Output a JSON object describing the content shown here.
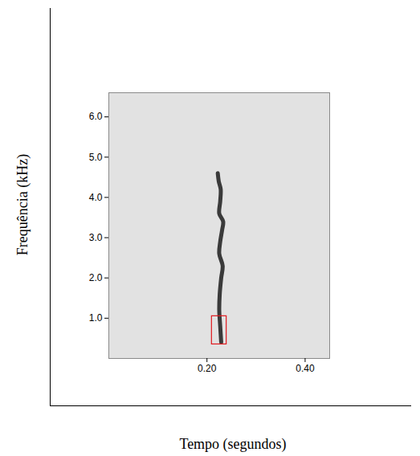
{
  "chart_data": {
    "type": "spectrogram",
    "x_label": "Tempo (segundos)",
    "y_label": "Frequência (kHz)",
    "xlim": [
      0,
      0.45
    ],
    "xticks": [
      0.2,
      0.4
    ],
    "ylim": [
      0,
      6.6
    ],
    "yticks": [
      1,
      2,
      3,
      4,
      5,
      6
    ],
    "series": [
      {
        "color": "#3a3a3a",
        "x": [
          0.229,
          0.227,
          0.225,
          0.226,
          0.229,
          0.232,
          0.225,
          0.227,
          0.231,
          0.233,
          0.225,
          0.227,
          0.228,
          0.224,
          0.222
        ],
        "values": [
          0.4,
          0.8,
          1.2,
          1.6,
          2.0,
          2.3,
          2.6,
          2.9,
          3.2,
          3.4,
          3.6,
          3.9,
          4.2,
          4.4,
          4.6
        ]
      }
    ],
    "highlight": {
      "x": [
        0.21,
        0.24
      ],
      "y": [
        0.35,
        1.05
      ],
      "color": "#e0191e"
    }
  }
}
